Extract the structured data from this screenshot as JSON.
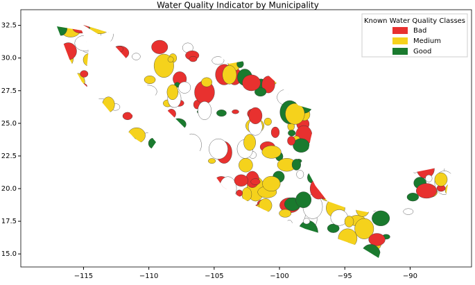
{
  "chart_data": {
    "type": "map",
    "title": "Water Quality Indicator by Municipality",
    "legend_title": "Known Water Quality Classes",
    "series": [
      {
        "name": "Bad",
        "color": "#e8312f"
      },
      {
        "name": "Medium",
        "color": "#f5d21c"
      },
      {
        "name": "Good",
        "color": "#1a7a2e"
      }
    ],
    "xlim": [
      -119.8,
      -85.3
    ],
    "ylim": [
      14.0,
      33.7
    ],
    "xticks": [
      {
        "value": -115,
        "label": "−115"
      },
      {
        "value": -110,
        "label": "−110"
      },
      {
        "value": -105,
        "label": "−105"
      },
      {
        "value": -100,
        "label": "−100"
      },
      {
        "value": -95,
        "label": "−95"
      },
      {
        "value": -90,
        "label": "−90"
      }
    ],
    "yticks": [
      {
        "value": 15,
        "label": "15.0"
      },
      17.5,
      {
        "value": 20,
        "label": "20.0"
      },
      22.5,
      {
        "value": 25,
        "label": "25.0"
      },
      27.5,
      {
        "value": 30,
        "label": "30.0"
      },
      32.5
    ],
    "legend_position": "upper right"
  }
}
